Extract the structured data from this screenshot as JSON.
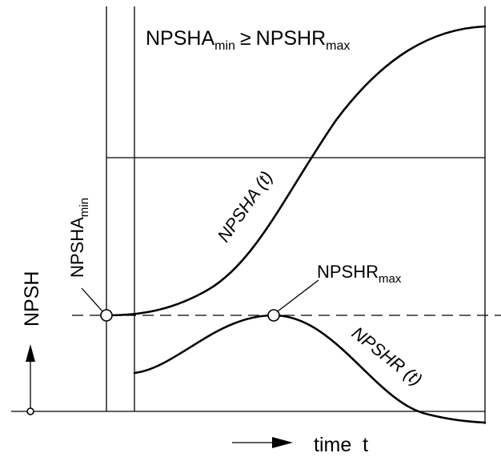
{
  "diagram": {
    "condition": {
      "left_base": "NPSHA",
      "left_sub": "min",
      "operator": "≥",
      "right_base": "NPSHR",
      "right_sub": "max"
    },
    "y_axis_label": "NPSH",
    "x_axis_label": "time  t",
    "curves": {
      "npsha": "NPSHA (t)",
      "npshr": "NPSHR (t)"
    },
    "markers": {
      "npsha_min_base": "NPSHA",
      "npsha_min_sub": "min",
      "npshr_max_base": "NPSHR",
      "npshr_max_sub": "max"
    }
  }
}
